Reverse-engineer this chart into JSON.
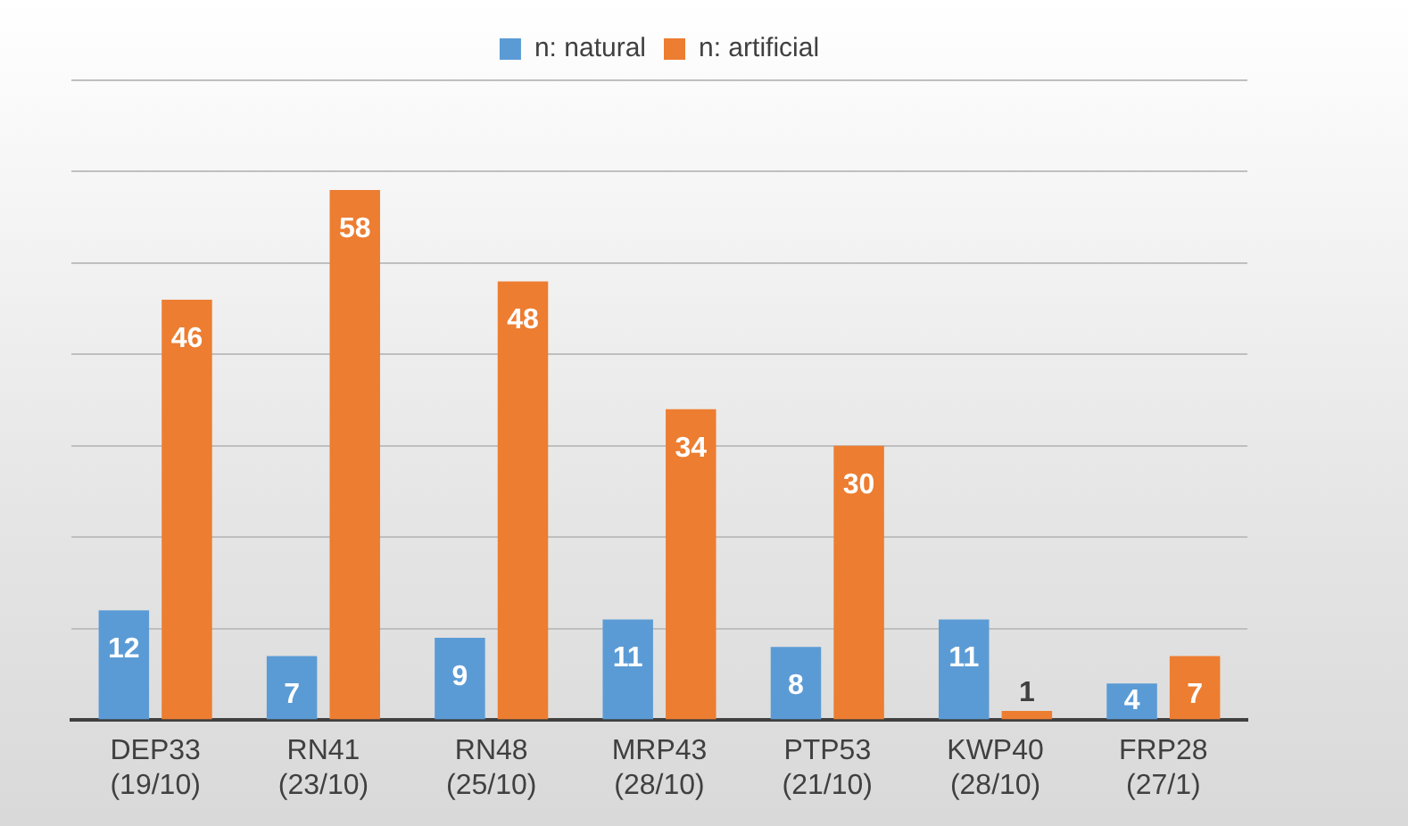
{
  "chart_data": {
    "type": "bar",
    "categories": [
      "DEP33 (19/10)",
      "RN41 (23/10)",
      "RN48 (25/10)",
      "MRP43 (28/10)",
      "PTP53 (21/10)",
      "KWP40 (28/10)",
      "FRP28 (27/1)"
    ],
    "series": [
      {
        "name": "n: natural",
        "color": "#5b9bd5",
        "values": [
          12,
          7,
          9,
          11,
          8,
          11,
          4
        ]
      },
      {
        "name": "n: artificial",
        "color": "#ed7d31",
        "values": [
          46,
          58,
          48,
          34,
          30,
          1,
          7
        ]
      }
    ],
    "ylim": [
      0,
      70
    ],
    "yticks": [
      0,
      10,
      20,
      30,
      40,
      50,
      60,
      70
    ],
    "grid": "y",
    "legend": "top",
    "tick_labels": "x",
    "data_labels": true
  }
}
